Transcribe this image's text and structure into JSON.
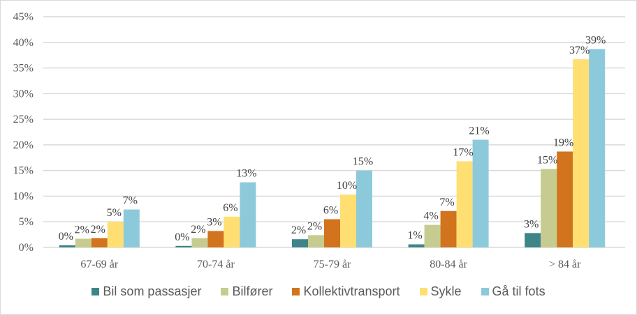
{
  "chart_data": {
    "type": "bar",
    "title": "",
    "xlabel": "",
    "ylabel": "",
    "ylim": [
      0,
      45
    ],
    "yticks": [
      "0%",
      "5%",
      "10%",
      "15%",
      "20%",
      "25%",
      "30%",
      "35%",
      "40%",
      "45%"
    ],
    "grid": true,
    "legend_position": "bottom",
    "categories": [
      "67-69 år",
      "70-74 år",
      "75-79 år",
      "80-84 år",
      "> 84 år"
    ],
    "series": [
      {
        "name": "Bil som passasjer",
        "color": "#3d8588",
        "values": [
          0.4,
          0.3,
          1.6,
          0.6,
          2.8
        ],
        "labels": [
          "0%",
          "0%",
          "2%",
          "1%",
          "3%"
        ]
      },
      {
        "name": "Bilfører",
        "color": "#c6cc90",
        "values": [
          1.7,
          1.8,
          2.4,
          4.4,
          15.3
        ],
        "labels": [
          "2%",
          "2%",
          "2%",
          "4%",
          "15%"
        ]
      },
      {
        "name": "Kollektivtransport",
        "color": "#d2731d",
        "values": [
          1.8,
          3.2,
          5.5,
          7.1,
          18.7
        ],
        "labels": [
          "2%",
          "3%",
          "6%",
          "7%",
          "19%"
        ]
      },
      {
        "name": "Sykle",
        "color": "#ffdf72",
        "values": [
          5.0,
          6.0,
          10.3,
          16.8,
          36.7
        ],
        "labels": [
          "5%",
          "6%",
          "10%",
          "17%",
          "37%"
        ]
      },
      {
        "name": "Gå til fots",
        "color": "#8ccadb",
        "values": [
          7.4,
          12.7,
          15.0,
          21.0,
          38.7
        ],
        "labels": [
          "7%",
          "13%",
          "15%",
          "21%",
          "39%"
        ]
      }
    ]
  }
}
